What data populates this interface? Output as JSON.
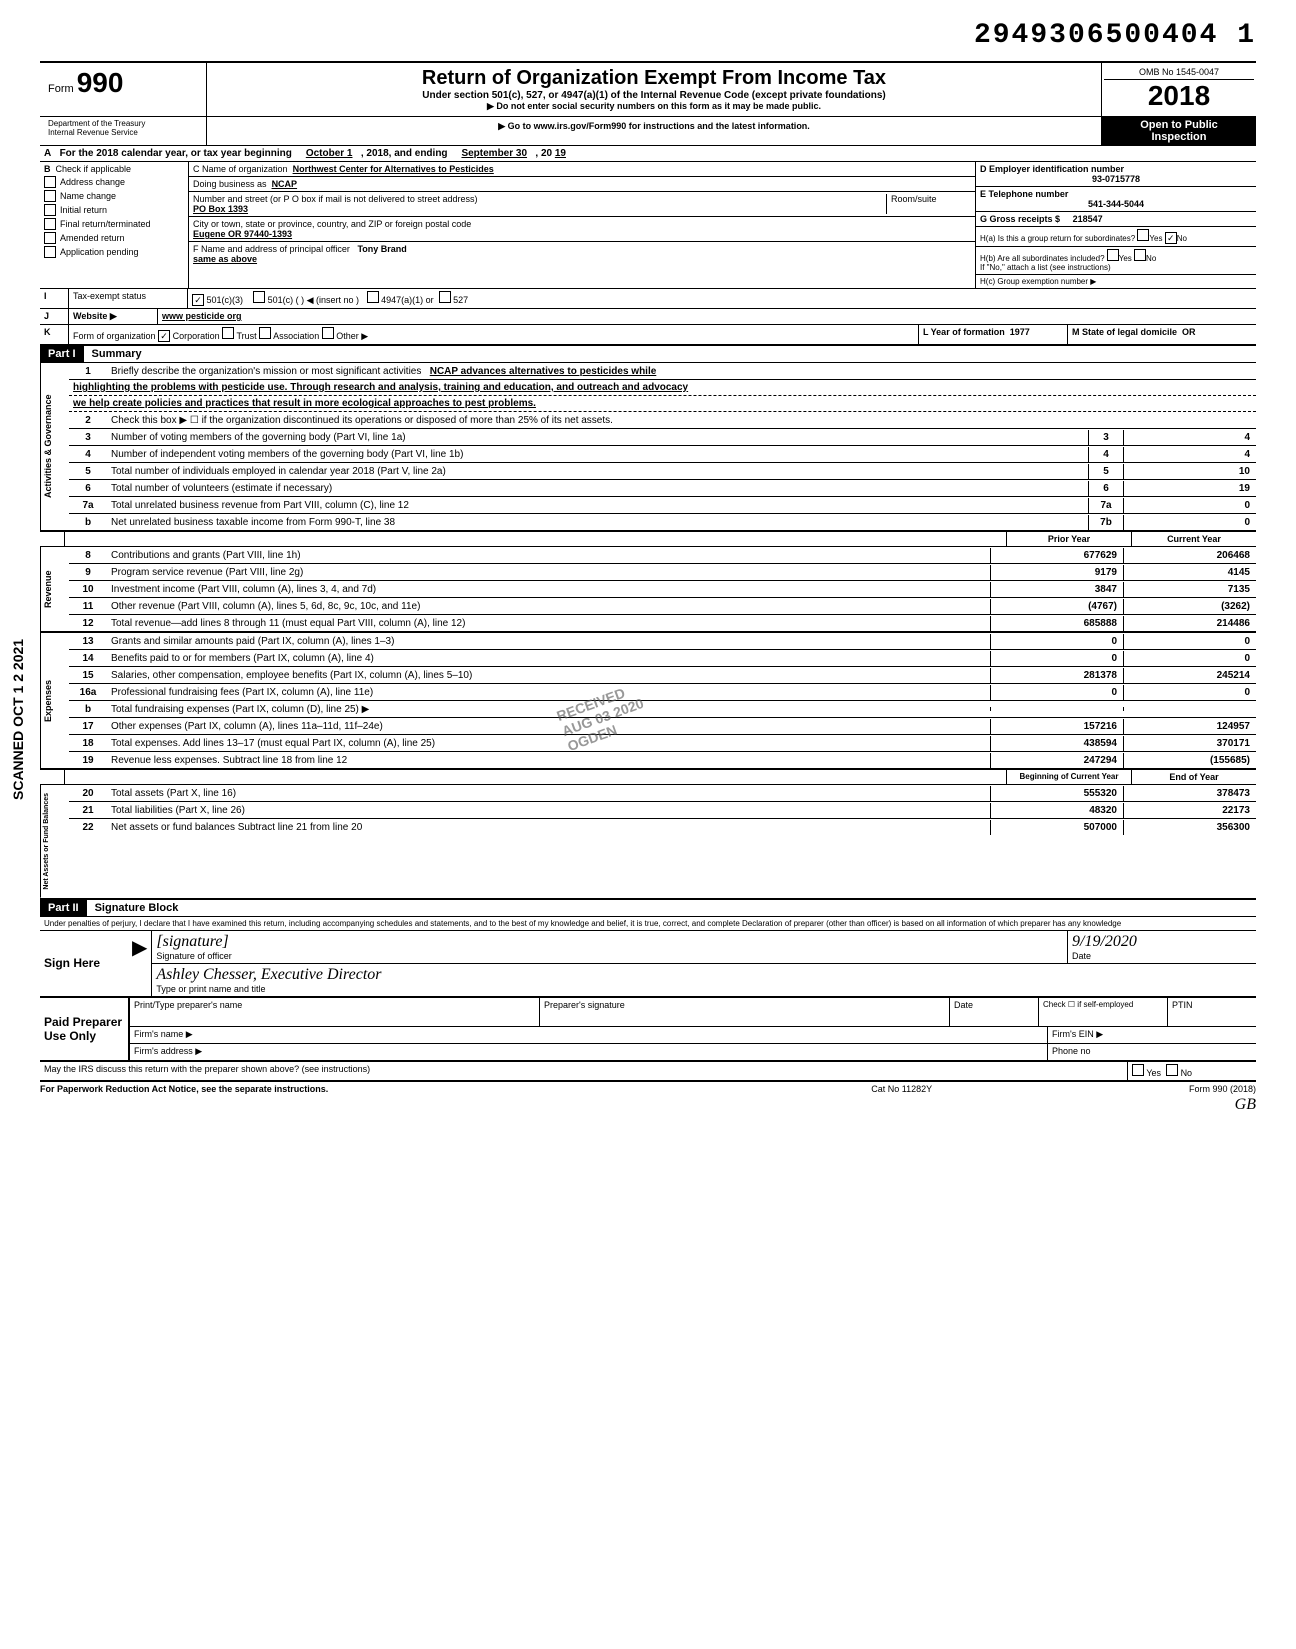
{
  "stamp_number": "2949306500404 1",
  "vertical_stamp": "SCANNED OCT 1 2 2021",
  "header": {
    "form_label": "Form",
    "form_number": "990",
    "title": "Return of Organization Exempt From Income Tax",
    "subtitle": "Under section 501(c), 527, or 4947(a)(1) of the Internal Revenue Code (except private foundations)",
    "warn1": "▶ Do not enter social security numbers on this form as it may be made public.",
    "warn2": "▶ Go to www.irs.gov/Form990 for instructions and the latest information.",
    "dept1": "Department of the Treasury",
    "dept2": "Internal Revenue Service",
    "omb": "OMB No 1545-0047",
    "year": "2018",
    "open1": "Open to Public",
    "open2": "Inspection"
  },
  "row_a": {
    "label_a": "A",
    "text1": "For the 2018 calendar year, or tax year beginning",
    "begin": "October 1",
    "mid": ", 2018, and ending",
    "end": "September 30",
    "yr_prefix": ", 20",
    "yr": "19"
  },
  "section_b": {
    "label": "B",
    "check_label": "Check if applicable",
    "opts": {
      "address": "Address change",
      "name": "Name change",
      "initial": "Initial return",
      "final": "Final return/terminated",
      "amended": "Amended return",
      "pending": "Application pending"
    }
  },
  "section_c": {
    "c_label": "C Name of organization",
    "org_name": "Northwest Center for Alternatives to Pesticides",
    "dba_label": "Doing business as",
    "dba": "NCAP",
    "addr_label": "Number and street (or P O box if mail is not delivered to street address)",
    "room_label": "Room/suite",
    "addr": "PO Box 1393",
    "city_label": "City or town, state or province, country, and ZIP or foreign postal code",
    "city": "Eugene OR 97440-1393",
    "f_label": "F Name and address of principal officer",
    "f_name": "Tony Brand",
    "f_same": "same as above"
  },
  "section_d": {
    "d_label": "D Employer identification number",
    "ein": "93-0715778",
    "e_label": "E Telephone number",
    "phone": "541-344-5044",
    "g_label": "G Gross receipts $",
    "g_val": "218547",
    "ha_label": "H(a) Is this a group return for subordinates?",
    "yes": "Yes",
    "no": "No",
    "hb_label": "H(b) Are all subordinates included?",
    "hb_note": "If \"No,\" attach a list (see instructions)",
    "hc_label": "H(c) Group exemption number ▶"
  },
  "row_i": {
    "label": "I",
    "text": "Tax-exempt status",
    "opt1": "501(c)(3)",
    "opt2": "501(c) (",
    "opt2b": ") ◀ (insert no )",
    "opt3": "4947(a)(1) or",
    "opt4": "527"
  },
  "row_j": {
    "label": "J",
    "text": "Website ▶",
    "val": "www pesticide org"
  },
  "row_k": {
    "label": "K",
    "text": "Form of organization",
    "corp": "Corporation",
    "trust": "Trust",
    "assoc": "Association",
    "other": "Other ▶",
    "l_label": "L Year of formation",
    "l_val": "1977",
    "m_label": "M State of legal domicile",
    "m_val": "OR"
  },
  "part1": {
    "label": "Part I",
    "title": "Summary"
  },
  "activities": {
    "side": "Activities & Governance",
    "line1_num": "1",
    "line1_text": "Briefly describe the organization's mission or most significant activities",
    "line1_val": "NCAP advances alternatives to pesticides while",
    "line1_cont1": "highlighting the problems with pesticide use. Through research and analysis, training and education, and outreach and advocacy",
    "line1_cont2": "we help create policies and practices that result in more ecological approaches to pest problems.",
    "line2_num": "2",
    "line2_text": "Check this box ▶ ☐ if the organization discontinued its operations or disposed of more than 25% of its net assets.",
    "line3_num": "3",
    "line3_text": "Number of voting members of the governing body (Part VI, line 1a)",
    "line3_box": "3",
    "line3_val": "4",
    "line4_num": "4",
    "line4_text": "Number of independent voting members of the governing body (Part VI, line 1b)",
    "line4_box": "4",
    "line4_val": "4",
    "line5_num": "5",
    "line5_text": "Total number of individuals employed in calendar year 2018 (Part V, line 2a)",
    "line5_box": "5",
    "line5_val": "10",
    "line6_num": "6",
    "line6_text": "Total number of volunteers (estimate if necessary)",
    "line6_box": "6",
    "line6_val": "19",
    "line7a_num": "7a",
    "line7a_text": "Total unrelated business revenue from Part VIII, column (C), line 12",
    "line7a_box": "7a",
    "line7a_val": "0",
    "line7b_num": "b",
    "line7b_text": "Net unrelated business taxable income from Form 990-T, line 38",
    "line7b_box": "7b",
    "line7b_val": "0"
  },
  "col_headers": {
    "prior": "Prior Year",
    "current": "Current Year"
  },
  "revenue": {
    "side": "Revenue",
    "rows": [
      {
        "num": "8",
        "text": "Contributions and grants (Part VIII, line 1h)",
        "prior": "677629",
        "current": "206468"
      },
      {
        "num": "9",
        "text": "Program service revenue (Part VIII, line 2g)",
        "prior": "9179",
        "current": "4145"
      },
      {
        "num": "10",
        "text": "Investment income (Part VIII, column (A), lines 3, 4, and 7d)",
        "prior": "3847",
        "current": "7135"
      },
      {
        "num": "11",
        "text": "Other revenue (Part VIII, column (A), lines 5, 6d, 8c, 9c, 10c, and 11e)",
        "prior": "(4767)",
        "current": "(3262)"
      },
      {
        "num": "12",
        "text": "Total revenue—add lines 8 through 11 (must equal Part VIII, column (A), line 12)",
        "prior": "685888",
        "current": "214486"
      }
    ]
  },
  "expenses": {
    "side": "Expenses",
    "rows": [
      {
        "num": "13",
        "text": "Grants and similar amounts paid (Part IX, column (A), lines 1–3)",
        "prior": "0",
        "current": "0"
      },
      {
        "num": "14",
        "text": "Benefits paid to or for members (Part IX, column (A), line 4)",
        "prior": "0",
        "current": "0"
      },
      {
        "num": "15",
        "text": "Salaries, other compensation, employee benefits (Part IX, column (A), lines 5–10)",
        "prior": "281378",
        "current": "245214"
      },
      {
        "num": "16a",
        "text": "Professional fundraising fees (Part IX, column (A), line 11e)",
        "prior": "0",
        "current": "0"
      },
      {
        "num": "b",
        "text": "Total fundraising expenses (Part IX, column (D), line 25) ▶",
        "prior": "",
        "current": ""
      },
      {
        "num": "17",
        "text": "Other expenses (Part IX, column (A), lines 11a–11d, 11f–24e)",
        "prior": "157216",
        "current": "124957"
      },
      {
        "num": "18",
        "text": "Total expenses. Add lines 13–17 (must equal Part IX, column (A), line 25)",
        "prior": "438594",
        "current": "370171"
      },
      {
        "num": "19",
        "text": "Revenue less expenses. Subtract line 18 from line 12",
        "prior": "247294",
        "current": "(155685)"
      }
    ]
  },
  "net_headers": {
    "begin": "Beginning of Current Year",
    "end": "End of Year"
  },
  "netassets": {
    "side": "Net Assets or Fund Balances",
    "rows": [
      {
        "num": "20",
        "text": "Total assets (Part X, line 16)",
        "prior": "555320",
        "current": "378473"
      },
      {
        "num": "21",
        "text": "Total liabilities (Part X, line 26)",
        "prior": "48320",
        "current": "22173"
      },
      {
        "num": "22",
        "text": "Net assets or fund balances Subtract line 21 from line 20",
        "prior": "507000",
        "current": "356300"
      }
    ]
  },
  "part2": {
    "label": "Part II",
    "title": "Signature Block"
  },
  "perjury": "Under penalties of perjury, I declare that I have examined this return, including accompanying schedules and statements, and to the best of my knowledge and belief, it is true, correct, and complete Declaration of preparer (other than officer) is based on all information of which preparer has any knowledge",
  "sign": {
    "label": "Sign Here",
    "sig_of": "Signature of officer",
    "name_title": "Ashley Chesser, Executive Director",
    "date_label": "Date",
    "date_val": "9/19/2020",
    "type_label": "Type or print name and title"
  },
  "paid": {
    "label": "Paid Preparer Use Only",
    "print_label": "Print/Type preparer's name",
    "sig_label": "Preparer's signature",
    "date_label": "Date",
    "check_label": "Check ☐ if self-employed",
    "ptin_label": "PTIN",
    "firm_name": "Firm's name ▶",
    "firm_addr": "Firm's address ▶",
    "firm_ein": "Firm's EIN ▶",
    "phone": "Phone no"
  },
  "may_irs": {
    "text": "May the IRS discuss this return with the preparer shown above? (see instructions)",
    "yes": "Yes",
    "no": "No"
  },
  "footer": {
    "left": "For Paperwork Reduction Act Notice, see the separate instructions.",
    "mid": "Cat No 11282Y",
    "right": "Form 990 (2018)"
  },
  "received_stamp": {
    "l1": "RECEIVED",
    "l2": "AUG 03 2020",
    "l3": "OGDEN"
  },
  "initials": "GB"
}
